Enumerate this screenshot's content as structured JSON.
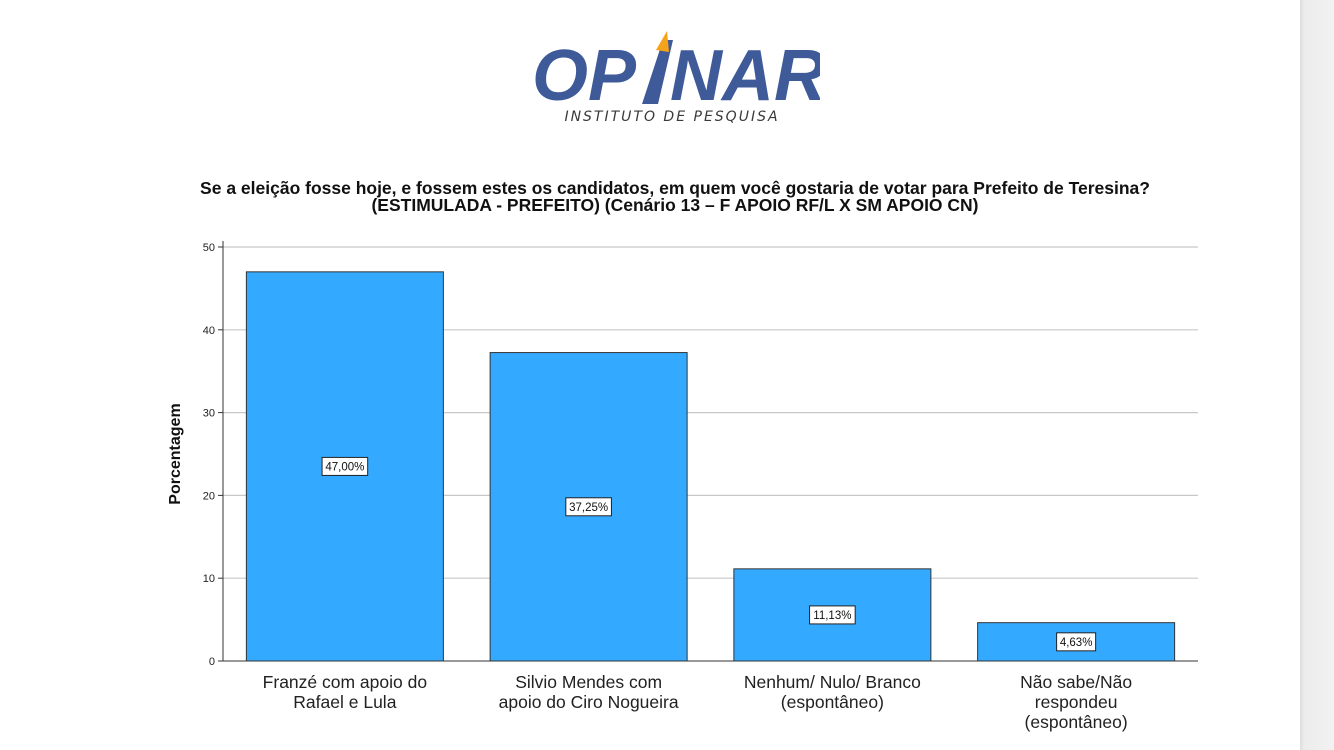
{
  "logo": {
    "brand_left": "OP",
    "brand_right": "NAR",
    "tagline": "INSTITUTO DE PESQUISA",
    "colors": {
      "primary": "#3f5a99",
      "accent": "#f5a31a"
    }
  },
  "chart_data": {
    "type": "bar",
    "title": "Se a eleição fosse hoje, e fossem estes os candidatos, em quem você gostaria de votar  para Prefeito de Teresina? (ESTIMULADA - PREFEITO) (Cenário 13 – F APOIO RF/L X SM APOIO CN)",
    "ylabel": "Porcentagem",
    "xlabel": "",
    "ylim": [
      0,
      50
    ],
    "yticks": [
      "0",
      "10",
      "20",
      "30",
      "40",
      "50"
    ],
    "grid": true,
    "bar_color": "#33aaff",
    "categories": [
      [
        "Franzé com apoio do",
        "Rafael e Lula"
      ],
      [
        "Silvio Mendes com",
        "apoio do Ciro Nogueira"
      ],
      [
        "Nenhum/ Nulo/ Branco",
        "(espontâneo)"
      ],
      [
        "Não sabe/Não",
        "respondeu",
        "(espontâneo)"
      ]
    ],
    "values": [
      47.0,
      37.25,
      11.13,
      4.63
    ],
    "data_labels": [
      "47,00%",
      "37,25%",
      "11,13%",
      "4,63%"
    ]
  }
}
